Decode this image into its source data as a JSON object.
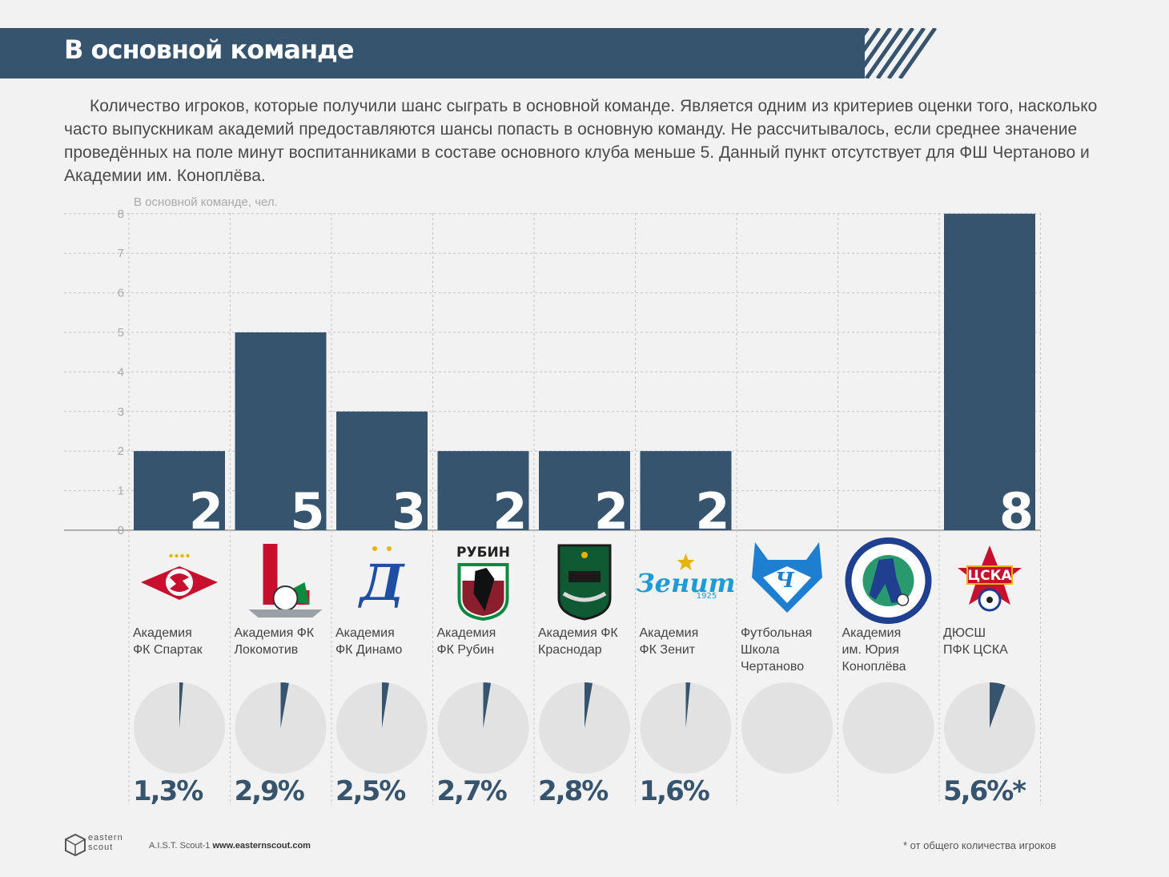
{
  "header": {
    "title": "В основной команде"
  },
  "intro": "Количество игроков, которые получили шанс сыграть в основной команде. Является одним из критериев оценки того, насколько часто выпускникам академий предоставляются шансы попасть в основную команду. Не рассчитывалось, если среднее значение проведённых на поле минут воспитанниками в составе основного клуба меньше 5. Данный пункт отсутствует для ФШ Чертаново и Академии им. Коноплёва.",
  "colors": {
    "bar": "#36546e",
    "pie_bg": "#e2e2e2",
    "grid": "#c4c4c4"
  },
  "chart_data": {
    "type": "bar",
    "ylabel": "В основной команде, чел.",
    "ylim": [
      0,
      8
    ],
    "yticks": [
      0,
      1,
      2,
      3,
      4,
      5,
      6,
      7,
      8
    ],
    "categories": [
      "Академия ФК Спартак",
      "Академия ФК Локомотив",
      "Академия ФК Динамо",
      "Академия ФК Рубин",
      "Академия ФК Краснодар",
      "Академия ФК Зенит",
      "Футбольная Школа Чертаново",
      "Академия им. Юрия Коноплёва",
      "ДЮСШ ПФК ЦСКА"
    ],
    "category_lines": [
      [
        "Академия",
        "ФК Спартак"
      ],
      [
        "Академия ФК",
        "Локомотив"
      ],
      [
        "Академия",
        "ФК Динамо"
      ],
      [
        "Академия",
        "ФК Рубин"
      ],
      [
        "Академия ФК",
        "Краснодар"
      ],
      [
        "Академия",
        "ФК Зенит"
      ],
      [
        "Футбольная",
        "Школа",
        "Чертаново"
      ],
      [
        "Академия",
        "им. Юрия",
        "Коноплёва"
      ],
      [
        "ДЮСШ",
        "ПФК ЦСКА"
      ]
    ],
    "values": [
      2,
      5,
      3,
      2,
      2,
      2,
      null,
      null,
      8
    ],
    "value_labels": [
      "2",
      "5",
      "3",
      "2",
      "2",
      "2",
      "",
      "",
      "8"
    ],
    "share_percent": [
      1.3,
      2.9,
      2.5,
      2.7,
      2.8,
      1.6,
      null,
      null,
      5.6
    ],
    "share_labels": [
      "1,3%",
      "2,9%",
      "2,5%",
      "2,7%",
      "2,8%",
      "1,6%",
      "",
      "",
      "5,6%*"
    ],
    "grid": true
  },
  "logos": [
    "spartak-logo",
    "lokomotiv-logo",
    "dinamo-logo",
    "rubin-logo",
    "krasnodar-logo",
    "zenit-logo",
    "chertanovo-logo",
    "konoplev-logo",
    "cska-logo"
  ],
  "logo_text": {
    "rubin": "РУБИН",
    "zenit": "Зенит",
    "zenit_year": "1925",
    "cska": "ЦСКА",
    "chertanovo": "Ч"
  },
  "footer": {
    "brand_top": "eastern",
    "brand_bottom": "scout",
    "credit": "A.I.S.T. Scout-1",
    "url": "www.easternscout.com",
    "footnote": "* от общего количества игроков"
  }
}
